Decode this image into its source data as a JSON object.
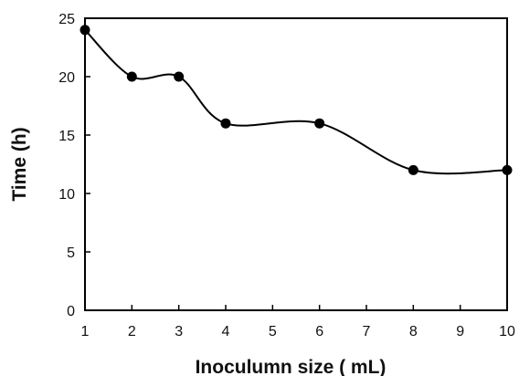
{
  "chart_data": {
    "type": "line",
    "title": "",
    "xlabel": "Inoculumn size ( mL)",
    "ylabel": "Time (h)",
    "xlim": [
      1,
      10
    ],
    "ylim": [
      0,
      25
    ],
    "xticks": [
      1,
      2,
      3,
      4,
      5,
      6,
      7,
      8,
      9,
      10
    ],
    "yticks": [
      0,
      5,
      10,
      15,
      20,
      25
    ],
    "grid": false,
    "smooth": true,
    "x": [
      1,
      2,
      3,
      4,
      6,
      8,
      10
    ],
    "series": [
      {
        "values": [
          24,
          20,
          20,
          16,
          16,
          12,
          12
        ]
      }
    ],
    "colors": {
      "line": "#000000",
      "marker": "#000000",
      "frame": "#000000"
    }
  }
}
